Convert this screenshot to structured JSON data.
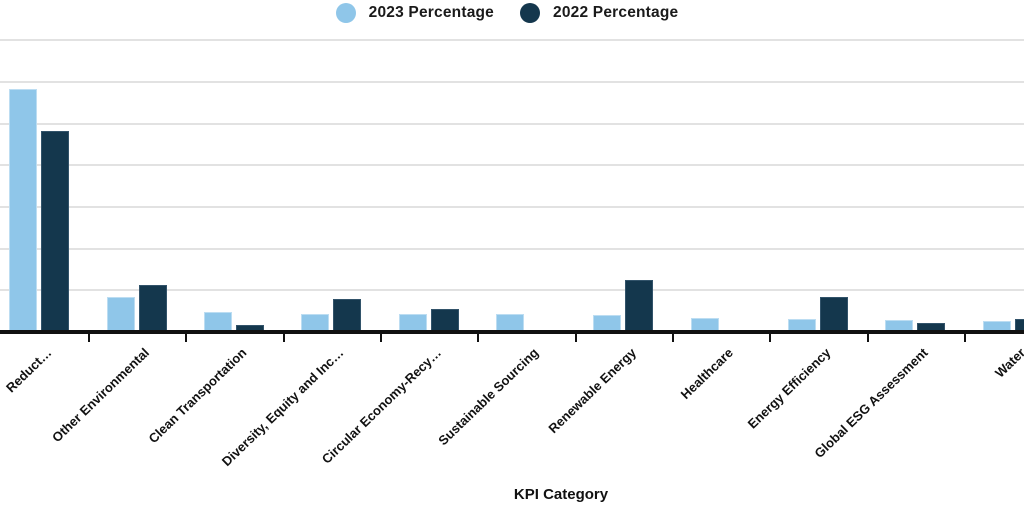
{
  "chart_data": {
    "type": "bar",
    "title": "",
    "xlabel": "KPI Category",
    "ylabel": "",
    "ylim": [
      0,
      35
    ],
    "gridline_step": 5,
    "grid": true,
    "legend_position": "top-center",
    "categories": [
      "Reduct…",
      "Other Environmental",
      "Clean Transportation",
      "Diversity, Equity and Inc…",
      "Circular Economy-Recy…",
      "Sustainable Sourcing",
      "Renewable Energy",
      "Healthcare",
      "Energy Efficiency",
      "Global ESG Assessment",
      "Water"
    ],
    "series": [
      {
        "name": "2023 Percentage",
        "color": "#8FC6E9",
        "values": [
          29.1,
          4.2,
          2.4,
          2.2,
          2.2,
          2.1,
          2.0,
          1.7,
          1.6,
          1.4,
          1.3
        ]
      },
      {
        "name": "2022 Percentage",
        "color": "#14374D",
        "values": [
          24.1,
          5.6,
          0.8,
          4.0,
          2.7,
          0,
          6.2,
          0,
          4.2,
          1.1,
          1.6
        ]
      }
    ]
  },
  "axis": {
    "x_title": "KPI Category"
  }
}
